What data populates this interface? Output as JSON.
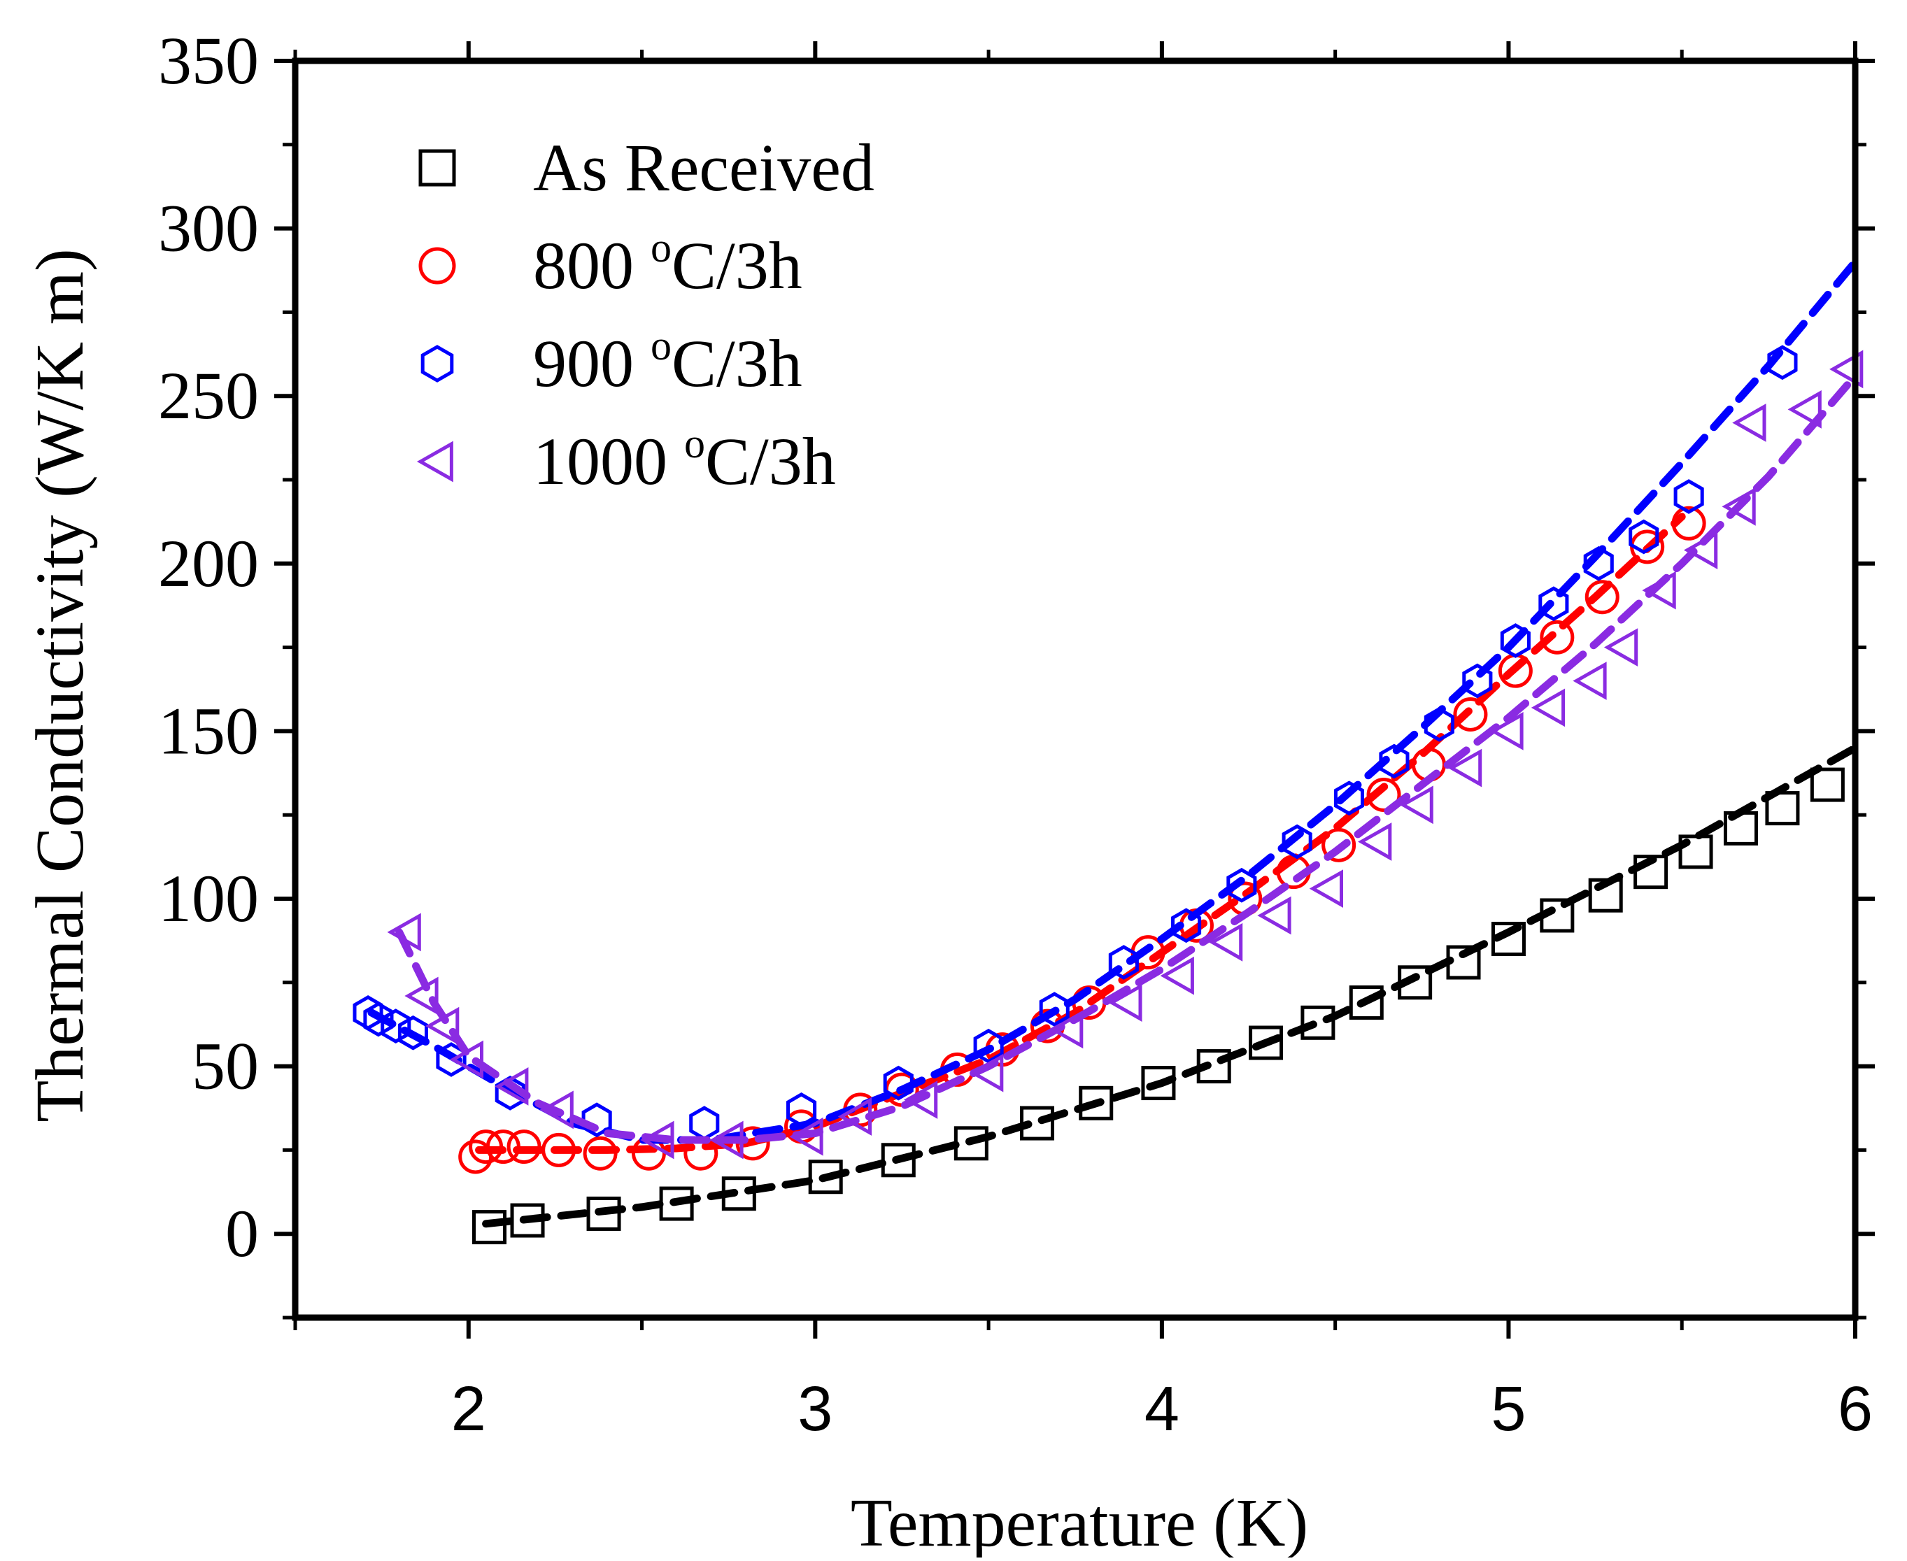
{
  "chart_data": {
    "type": "scatter",
    "title": "",
    "xlabel": "Temperature (K)",
    "ylabel": "Thermal Conductivity (W/K m)",
    "xlim": [
      1.5,
      6
    ],
    "ylim": [
      -25,
      350
    ],
    "xticks": [
      2,
      3,
      4,
      5,
      6
    ],
    "xtick_labels": [
      "2",
      "3",
      "4",
      "5",
      "6"
    ],
    "yticks": [
      0,
      50,
      100,
      150,
      200,
      250,
      300,
      350
    ],
    "ytick_labels": [
      "0",
      "50",
      "100",
      "150",
      "200",
      "250",
      "300",
      "350"
    ],
    "legend_position": "top-left",
    "series": [
      {
        "name": "As Received",
        "legend_main": "As Received",
        "legend_sup": "",
        "legend_tail": "",
        "color": "#000000",
        "marker": "square",
        "x": [
          2.06,
          2.17,
          2.39,
          2.6,
          2.78,
          3.03,
          3.24,
          3.45,
          3.64,
          3.81,
          3.99,
          4.15,
          4.3,
          4.45,
          4.59,
          4.73,
          4.87,
          5.0,
          5.14,
          5.28,
          5.41,
          5.54,
          5.67,
          5.79,
          5.92
        ],
        "y": [
          2,
          4,
          6,
          9,
          12,
          17,
          22,
          27,
          33,
          39,
          45,
          50,
          57,
          63,
          69,
          75,
          81,
          88,
          95,
          101,
          108,
          114,
          121,
          127,
          134
        ],
        "fit_x": [
          2.05,
          2.5,
          3.0,
          3.5,
          4.0,
          4.5,
          5.0,
          5.5,
          6.0
        ],
        "fit_y": [
          3,
          8,
          16,
          29,
          45,
          65,
          90,
          116,
          145
        ]
      },
      {
        "name": "800 oC/3h",
        "legend_main": "800 ",
        "legend_sup": "o",
        "legend_tail": "C/3h",
        "color": "#ff0000",
        "marker": "circle",
        "x": [
          2.02,
          2.05,
          2.1,
          2.16,
          2.26,
          2.38,
          2.52,
          2.67,
          2.82,
          2.96,
          3.13,
          3.25,
          3.41,
          3.54,
          3.67,
          3.79,
          3.96,
          4.1,
          4.24,
          4.38,
          4.51,
          4.64,
          4.77,
          4.89,
          5.02,
          5.14,
          5.27,
          5.4,
          5.52
        ],
        "y": [
          23,
          26,
          26,
          26,
          25,
          24,
          24,
          24,
          27,
          32,
          37,
          43,
          49,
          55,
          62,
          69,
          84,
          92,
          100,
          108,
          116,
          131,
          140,
          155,
          168,
          178,
          190,
          205,
          212
        ],
        "fit_x": [
          2.03,
          2.2,
          2.4,
          2.6,
          2.8,
          3.0,
          3.25,
          3.5,
          3.75,
          4.0,
          4.25,
          4.5,
          4.75,
          5.0,
          5.25,
          5.5
        ],
        "fit_y": [
          25,
          25,
          25,
          25.5,
          27,
          32,
          42,
          52,
          66,
          84,
          102,
          121,
          143,
          167,
          190,
          214
        ]
      },
      {
        "name": "900 oC/3h",
        "legend_main": "900 ",
        "legend_sup": "o",
        "legend_tail": "C/3h",
        "color": "#0000ff",
        "marker": "hexagon",
        "x": [
          1.71,
          1.74,
          1.79,
          1.84,
          1.95,
          2.12,
          2.37,
          2.68,
          2.96,
          3.24,
          3.5,
          3.69,
          3.89,
          4.07,
          4.23,
          4.39,
          4.54,
          4.67,
          4.8,
          4.91,
          5.02,
          5.13,
          5.26,
          5.39,
          5.52,
          5.79
        ],
        "y": [
          66,
          64,
          62,
          60,
          52,
          42,
          34,
          33,
          37,
          45,
          56,
          67,
          81,
          92,
          104,
          117,
          130,
          141,
          152,
          165,
          177,
          188,
          200,
          208,
          220,
          260
        ],
        "fit_x": [
          1.72,
          1.9,
          2.1,
          2.3,
          2.5,
          2.7,
          3.0,
          3.25,
          3.5,
          3.75,
          4.0,
          4.25,
          4.5,
          4.75,
          5.0,
          5.25,
          5.5,
          5.75,
          6.0
        ],
        "fit_y": [
          66,
          56,
          44,
          33,
          28,
          28,
          33,
          43,
          55,
          70,
          88,
          107,
          128,
          151,
          175,
          202,
          230,
          259,
          290
        ]
      },
      {
        "name": "1000 oC/3h",
        "legend_main": "1000 ",
        "legend_sup": "o",
        "legend_tail": "C/3h",
        "color": "#8a2be2",
        "marker": "triangle-left",
        "x": [
          1.82,
          1.87,
          1.93,
          2.0,
          2.13,
          2.26,
          2.55,
          2.75,
          2.98,
          3.12,
          3.31,
          3.5,
          3.73,
          3.9,
          4.05,
          4.19,
          4.33,
          4.48,
          4.62,
          4.74,
          4.88,
          5.0,
          5.12,
          5.24,
          5.33,
          5.44,
          5.56,
          5.67,
          5.7,
          5.86,
          5.98
        ],
        "y": [
          90,
          71,
          62,
          52,
          44,
          37,
          28,
          28,
          29,
          35,
          40,
          48,
          61,
          69,
          77,
          87,
          95,
          103,
          117,
          128,
          139,
          150,
          157,
          165,
          175,
          192,
          204,
          217,
          242,
          246,
          258
        ],
        "fit_x": [
          1.8,
          1.9,
          2.0,
          2.2,
          2.4,
          2.6,
          2.8,
          3.0,
          3.25,
          3.5,
          3.75,
          4.0,
          4.25,
          4.5,
          4.75,
          5.0,
          5.25,
          5.5,
          5.75,
          6.0
        ],
        "fit_y": [
          90,
          69,
          53,
          39,
          30,
          28,
          28,
          30,
          38,
          50,
          64,
          79,
          96,
          114,
          134,
          154,
          176,
          200,
          226,
          256
        ]
      }
    ]
  }
}
